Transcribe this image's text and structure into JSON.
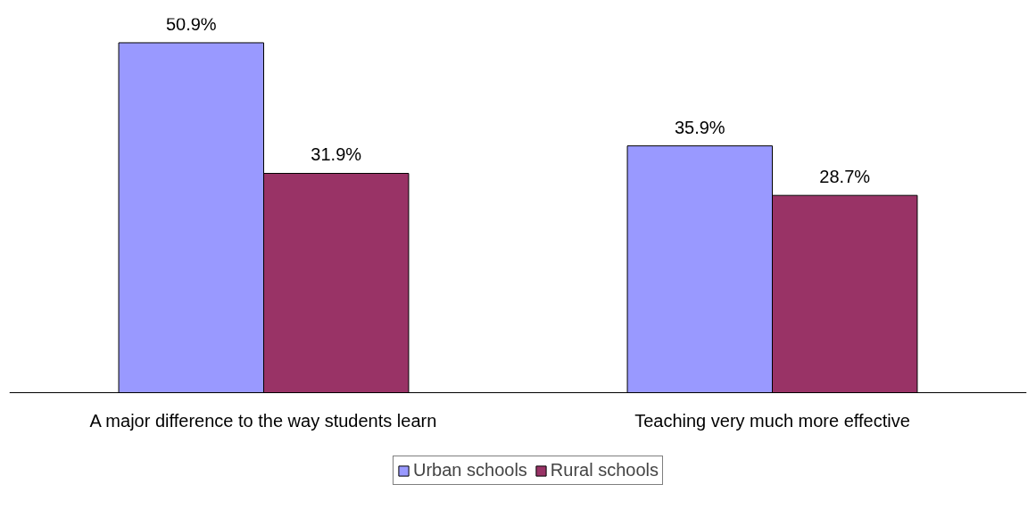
{
  "chart_data": {
    "type": "bar",
    "categories": [
      "A major difference to the way students learn",
      "Teaching very much more effective"
    ],
    "series": [
      {
        "name": "Urban schools",
        "color": "#9999ff",
        "values": [
          50.9,
          35.9
        ],
        "value_labels": [
          "50.9%",
          "35.9%"
        ]
      },
      {
        "name": "Rural schools",
        "color": "#993366",
        "values": [
          31.9,
          28.7
        ],
        "value_labels": [
          "31.9%",
          "28.7%"
        ]
      }
    ],
    "legend": "bottom"
  }
}
